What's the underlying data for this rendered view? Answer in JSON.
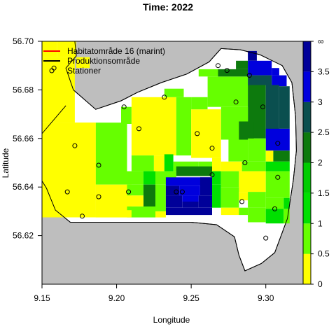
{
  "chart_data": {
    "type": "heatmap",
    "title": "Time: 2022",
    "xlabel": "Longitude",
    "ylabel": "Latitude",
    "xlim": [
      9.15,
      9.325
    ],
    "ylim": [
      56.6,
      56.7
    ],
    "x_ticks": [
      {
        "value": 9.15,
        "label": "9.15"
      },
      {
        "value": 9.2,
        "label": "9.20"
      },
      {
        "value": 9.25,
        "label": "9.25"
      },
      {
        "value": 9.3,
        "label": "9.30"
      }
    ],
    "y_ticks": [
      {
        "value": 56.62,
        "label": "56.62"
      },
      {
        "value": 56.64,
        "label": "56.64"
      },
      {
        "value": 56.66,
        "label": "56.66"
      },
      {
        "value": 56.68,
        "label": "56.68"
      },
      {
        "value": 56.7,
        "label": "56.70"
      }
    ],
    "grid": false,
    "legend": {
      "placement": "top-left",
      "entries": [
        {
          "label": "Habitatområde 16 (marint)",
          "style": "line",
          "color": "#ff0000"
        },
        {
          "label": "Produktionsområde",
          "style": "line",
          "color": "#000000"
        },
        {
          "label": "Stationer",
          "style": "circle",
          "color": "#000000"
        }
      ]
    },
    "colorbar": {
      "breaks": [
        0,
        0.5,
        1,
        1.5,
        2,
        2.5,
        3,
        3.5,
        "∞"
      ],
      "tick_labels": [
        "0",
        "0.5",
        "1",
        "1.5",
        "2",
        "2.5",
        "3",
        "3.5",
        "∞"
      ],
      "colors": [
        "#ffff00",
        "#66ff00",
        "#00e000",
        "#00cc00",
        "#0d7a0d",
        "#0a4f4f",
        "#0000dd",
        "#000099"
      ]
    },
    "stations": [
      [
        9.158,
        56.689
      ],
      [
        9.268,
        56.69
      ],
      [
        9.274,
        56.688
      ],
      [
        9.289,
        56.686
      ],
      [
        9.232,
        56.677
      ],
      [
        9.205,
        56.673
      ],
      [
        9.28,
        56.675
      ],
      [
        9.298,
        56.673
      ],
      [
        9.215,
        56.664
      ],
      [
        9.254,
        56.662
      ],
      [
        9.172,
        56.657
      ],
      [
        9.264,
        56.656
      ],
      [
        9.308,
        56.658
      ],
      [
        9.188,
        56.649
      ],
      [
        9.286,
        56.65
      ],
      [
        9.264,
        56.645
      ],
      [
        9.308,
        56.644
      ],
      [
        9.167,
        56.638
      ],
      [
        9.208,
        56.638
      ],
      [
        9.24,
        56.638
      ],
      [
        9.244,
        56.638
      ],
      [
        9.188,
        56.636
      ],
      [
        9.284,
        56.634
      ],
      [
        9.306,
        56.631
      ],
      [
        9.177,
        56.628
      ],
      [
        9.3,
        56.619
      ]
    ],
    "grid_cells": {
      "x_start": 9.1585,
      "y_start": 56.6975,
      "dx": 0.0068,
      "dy": -0.0045,
      "rows": [
        "0000000000000000000000000000000000",
        "000000000000000000000000000000000066",
        "00000000000000000000000000000000000000000444",
        "000000000000000000000000000000000000002233344",
        "00000000000000000000000000000000000000111122344",
        "000000000000000000000000000000000000001111122344",
        "000000000000000000000000000000000000001111122244",
        "0000000000000000000000000000000000000111112222444",
        "00000000000000000000000000000000000111111112222444",
        "0000000000000000000000000000000000011111111112222444",
        "000000000000000000000000000000000011111111111122222444",
        "00000000000000000000000000000000011111111111111222224",
        "0000000000000000000000000000000011111111111111112222",
        "000000000000000000000000000000011111111111111111111"
      ]
    }
  }
}
